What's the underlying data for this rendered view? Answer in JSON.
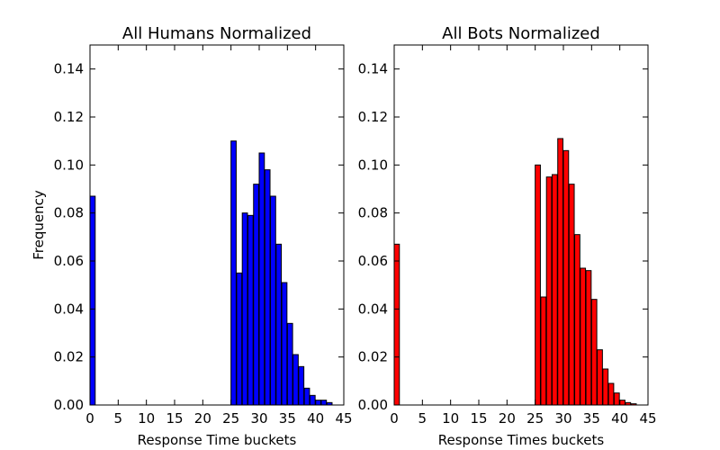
{
  "chart_data": [
    {
      "type": "bar",
      "title": "All Humans Normalized",
      "xlabel": "Response Time buckets",
      "ylabel": "Frequency",
      "xlim": [
        0,
        45
      ],
      "ylim": [
        0,
        0.15
      ],
      "xticks": [
        "0",
        "5",
        "10",
        "15",
        "20",
        "25",
        "30",
        "35",
        "40",
        "45"
      ],
      "yticks": [
        "0.00",
        "0.02",
        "0.04",
        "0.06",
        "0.08",
        "0.10",
        "0.12",
        "0.14"
      ],
      "grid": false,
      "color": "#0000ff",
      "x": [
        0,
        25,
        26,
        27,
        28,
        29,
        30,
        31,
        32,
        33,
        34,
        35,
        36,
        37,
        38,
        39,
        40,
        41,
        42
      ],
      "values": [
        0.087,
        0.11,
        0.055,
        0.08,
        0.079,
        0.092,
        0.105,
        0.098,
        0.087,
        0.067,
        0.051,
        0.034,
        0.021,
        0.016,
        0.007,
        0.004,
        0.002,
        0.002,
        0.001
      ]
    },
    {
      "type": "bar",
      "title": "All Bots Normalized",
      "xlabel": "Response Times buckets",
      "ylabel": "",
      "xlim": [
        0,
        45
      ],
      "ylim": [
        0,
        0.15
      ],
      "xticks": [
        "0",
        "5",
        "10",
        "15",
        "20",
        "25",
        "30",
        "35",
        "40",
        "45"
      ],
      "yticks": [
        "0.00",
        "0.02",
        "0.04",
        "0.06",
        "0.08",
        "0.10",
        "0.12",
        "0.14"
      ],
      "grid": false,
      "color": "#ff0000",
      "x": [
        0,
        25,
        26,
        27,
        28,
        29,
        30,
        31,
        32,
        33,
        34,
        35,
        36,
        37,
        38,
        39,
        40,
        41,
        42
      ],
      "values": [
        0.067,
        0.1,
        0.045,
        0.095,
        0.096,
        0.111,
        0.106,
        0.092,
        0.071,
        0.057,
        0.056,
        0.044,
        0.023,
        0.015,
        0.009,
        0.005,
        0.002,
        0.001,
        0.0005
      ]
    }
  ]
}
